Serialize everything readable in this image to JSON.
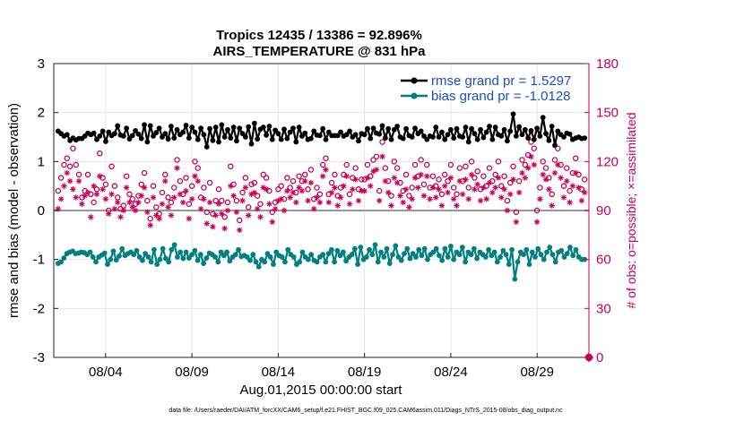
{
  "chart_data": {
    "type": "line",
    "title": "Tropics 12435 / 13386 = 92.896%",
    "subtitle": "AIRS_TEMPERATURE @ 831 hPa",
    "xlabel": "Aug.01,2015 00:00:00 start",
    "ylabel": "rmse and bias (model - observation)",
    "ylabel_right": "# of obs: o=possible; ×=assimilated",
    "footnote": "data file: /Users/raeder/DAI/ATM_forcXX/CAM6_setup/f.e21.FHIST_BGC.f09_025.CAM6assim.011/Diags_NTrS_2015-08/obs_diag_output.nc",
    "x_tick_labels": [
      "08/04",
      "08/09",
      "08/14",
      "08/19",
      "08/24",
      "08/29"
    ],
    "x_tick_days": [
      4,
      9,
      14,
      19,
      24,
      29
    ],
    "xlim": [
      1,
      32
    ],
    "ylim": [
      -3,
      3
    ],
    "y_ticks": [
      -3,
      -2,
      -1,
      0,
      1,
      2,
      3
    ],
    "ylim_right": [
      0,
      180
    ],
    "y_ticks_right": [
      0,
      30,
      60,
      90,
      120,
      150,
      180
    ],
    "grid": true,
    "legend_position": "top-right",
    "colors": {
      "rmse": "#000000",
      "bias": "#008080",
      "obs": "#cc0055",
      "zero_line": "#999999",
      "legend_text": "#1a4fcc"
    },
    "series": [
      {
        "name": "rmse grand pr = 1.5297",
        "axis": "left",
        "values": [
          1.62,
          1.57,
          1.52,
          1.55,
          1.43,
          1.48,
          1.44,
          1.47,
          1.47,
          1.52,
          1.58,
          1.55,
          1.58,
          1.45,
          1.52,
          1.62,
          1.41,
          1.6,
          1.53,
          1.57,
          1.73,
          1.54,
          1.52,
          1.68,
          1.46,
          1.53,
          1.63,
          1.56,
          1.47,
          1.75,
          1.4,
          1.73,
          1.52,
          1.59,
          1.68,
          1.5,
          1.57,
          1.46,
          1.72,
          1.48,
          1.65,
          1.55,
          1.6,
          1.74,
          1.48,
          1.7,
          1.6,
          1.45,
          1.68,
          1.55,
          1.3,
          1.67,
          1.43,
          1.7,
          1.4,
          1.75,
          1.5,
          1.65,
          1.48,
          1.7,
          1.42,
          1.68,
          1.57,
          1.5,
          1.71,
          1.36,
          1.78,
          1.46,
          1.66,
          1.7,
          1.54,
          1.72,
          1.45,
          1.64,
          1.57,
          1.45,
          1.66,
          1.47,
          1.6,
          1.68,
          1.4,
          1.7,
          1.52,
          1.58,
          1.45,
          1.47,
          1.62,
          1.54,
          1.53,
          1.67,
          1.45,
          1.6,
          1.53,
          1.53,
          1.53,
          1.6,
          1.52,
          1.55,
          1.62,
          1.5,
          1.55,
          1.42,
          1.57,
          1.55,
          1.67,
          1.47,
          1.68,
          1.58,
          1.56,
          1.73,
          1.48,
          1.67,
          1.45,
          1.65,
          1.72,
          1.5,
          1.47,
          1.67,
          1.53,
          1.5,
          1.68,
          1.57,
          1.62,
          1.52,
          1.45,
          1.52,
          1.5,
          1.7,
          1.5,
          1.6,
          1.45,
          1.55,
          1.65,
          1.48,
          1.67,
          1.52,
          1.5,
          1.7,
          1.4,
          1.67,
          1.57,
          1.45,
          1.65,
          1.49,
          1.6,
          1.72,
          1.45,
          1.7,
          1.55,
          1.52,
          1.65,
          1.42,
          1.62,
          1.97,
          1.52,
          1.71,
          1.55,
          1.65,
          1.48,
          1.63,
          1.45,
          1.68,
          1.52,
          1.9,
          1.57,
          1.43,
          1.72,
          1.33,
          1.62,
          1.55,
          1.5,
          1.58,
          1.56,
          1.45,
          1.48,
          1.5,
          1.47,
          1.48
        ]
      },
      {
        "name": "bias grand pr = -1.0128",
        "axis": "left",
        "values": [
          -1.08,
          -1.05,
          -0.97,
          -0.88,
          -0.85,
          -0.83,
          -0.88,
          -0.87,
          -0.85,
          -0.86,
          -0.9,
          -0.85,
          -0.95,
          -1.05,
          -0.95,
          -0.91,
          -0.87,
          -1.1,
          -1.0,
          -0.83,
          -1.01,
          -0.93,
          -0.78,
          -0.92,
          -0.88,
          -0.85,
          -0.9,
          -0.82,
          -0.95,
          -1.02,
          -0.88,
          -0.95,
          -1.05,
          -0.8,
          -1.1,
          -1.0,
          -0.78,
          -0.98,
          -1.05,
          -0.8,
          -0.7,
          -0.95,
          -0.85,
          -0.98,
          -0.85,
          -0.97,
          -0.9,
          -0.82,
          -1.02,
          -0.9,
          -1.08,
          -0.97,
          -0.87,
          -0.9,
          -0.95,
          -1.05,
          -0.85,
          -0.92,
          -0.85,
          -1.03,
          -0.95,
          -0.9,
          -0.8,
          -0.94,
          -0.92,
          -0.95,
          -1.02,
          -0.9,
          -1.05,
          -1.15,
          -1.0,
          -1.05,
          -0.88,
          -0.95,
          -1.1,
          -0.85,
          -0.92,
          -0.95,
          -1.05,
          -0.8,
          -0.9,
          -0.95,
          -1.1,
          -1.05,
          -0.85,
          -0.95,
          -1.0,
          -0.9,
          -1.02,
          -1.05,
          -0.95,
          -0.9,
          -1.05,
          -0.88,
          -0.8,
          -1.05,
          -0.82,
          -0.92,
          -0.85,
          -1.03,
          -0.95,
          -0.9,
          -0.78,
          -1.1,
          -0.75,
          -1.0,
          -0.95,
          -0.8,
          -0.9,
          -0.7,
          -1.05,
          -0.85,
          -0.95,
          -0.78,
          -1.08,
          -0.9,
          -0.72,
          -0.95,
          -1.02,
          -0.88,
          -0.78,
          -0.98,
          -0.88,
          -0.95,
          -0.8,
          -0.92,
          -0.78,
          -1.0,
          -0.9,
          -0.85,
          -0.78,
          -0.92,
          -1.02,
          -0.78,
          -0.95,
          -0.73,
          -1.0,
          -0.85,
          -0.9,
          -0.75,
          -1.05,
          -0.85,
          -0.9,
          -0.78,
          -0.98,
          -0.85,
          -0.9,
          -0.95,
          -0.8,
          -0.92,
          -0.85,
          -1.05,
          -0.95,
          -0.82,
          -0.9,
          -1.1,
          -0.8,
          -1.4,
          -1.05,
          -0.85,
          -0.9,
          -0.8,
          -1.1,
          -0.85,
          -0.95,
          -0.78,
          -0.9,
          -1.0,
          -0.85,
          -0.75,
          -0.9,
          -1.05,
          -0.85,
          -0.82,
          -0.95,
          -0.88,
          -0.75,
          -0.92,
          -0.8,
          -0.95,
          -1.0,
          -1.0
        ]
      },
      {
        "name": "possible",
        "axis": "right",
        "marker": "o",
        "values": [
          102,
          110,
          118,
          122,
          117,
          128,
          118,
          112,
          98,
          102,
          112,
          100,
          95,
          103,
          125,
          110,
          106,
          90,
          117,
          105,
          98,
          91,
          93,
          111,
          100,
          97,
          94,
          99,
          106,
          113,
          96,
          85,
          105,
          92,
          88,
          101,
          112,
          98,
          95,
          104,
          121,
          108,
          100,
          110,
          94,
          105,
          120,
          116,
          98,
          104,
          89,
          107,
          88,
          96,
          103,
          96,
          86,
          95,
          117,
          106,
          96,
          84,
          101,
          110,
          92,
          106,
          107,
          99,
          94,
          112,
          110,
          102,
          89,
          95,
          103,
          105,
          97,
          110,
          104,
          108,
          101,
          111,
          108,
          112,
          103,
          115,
          97,
          104,
          100,
          118,
          122,
          100,
          107,
          112,
          99,
          104,
          112,
          118,
          100,
          110,
          116,
          103,
          109,
          109,
          118,
          111,
          121,
          123,
          102,
          132,
          116,
          108,
          99,
          120,
          116,
          107,
          102,
          112,
          99,
          104,
          118,
          111,
          121,
          106,
          118,
          104,
          111,
          105,
          109,
          100,
          112,
          108,
          118,
          104,
          100,
          116,
          108,
          117,
          104,
          120,
          110,
          114,
          103,
          111,
          105,
          116,
          108,
          112,
          120,
          105,
          111,
          96,
          107,
          117,
          89,
          108,
          121,
          118,
          124,
          132,
          128,
          90,
          104,
          120,
          116,
          110,
          100,
          121,
          128,
          118,
          105,
          116,
          102,
          113,
          122,
          112,
          103,
          109
        ]
      },
      {
        "name": "assimilated",
        "axis": "right",
        "marker": "*",
        "values": [
          91,
          97,
          105,
          113,
          108,
          103,
          98,
          108,
          94,
          99,
          101,
          86,
          105,
          100,
          111,
          103,
          97,
          88,
          100,
          91,
          95,
          86,
          90,
          104,
          95,
          92,
          90,
          95,
          99,
          104,
          89,
          81,
          98,
          87,
          85,
          94,
          108,
          92,
          87,
          98,
          116,
          100,
          95,
          102,
          85,
          97,
          111,
          108,
          91,
          97,
          82,
          95,
          80,
          87,
          94,
          88,
          79,
          90,
          105,
          99,
          89,
          78,
          96,
          104,
          87,
          100,
          101,
          91,
          86,
          104,
          103,
          94,
          83,
          91,
          96,
          97,
          90,
          102,
          98,
          101,
          95,
          104,
          102,
          108,
          96,
          107,
          91,
          98,
          95,
          111,
          115,
          95,
          101,
          104,
          93,
          98,
          105,
          111,
          94,
          103,
          109,
          96,
          102,
          102,
          110,
          105,
          114,
          115,
          96,
          123,
          108,
          101,
          93,
          110,
          107,
          99,
          95,
          103,
          92,
          97,
          110,
          104,
          112,
          99,
          111,
          97,
          104,
          98,
          103,
          93,
          105,
          101,
          110,
          97,
          93,
          108,
          100,
          109,
          97,
          112,
          103,
          106,
          96,
          104,
          97,
          107,
          101,
          104,
          110,
          98,
          103,
          90,
          100,
          109,
          83,
          101,
          113,
          110,
          116,
          123,
          118,
          83,
          97,
          112,
          109,
          103,
          93,
          113,
          118,
          110,
          98,
          108,
          95,
          105,
          113,
          104,
          96,
          101
        ]
      }
    ],
    "terminal_point": {
      "x": 32,
      "y_right": 0
    }
  }
}
